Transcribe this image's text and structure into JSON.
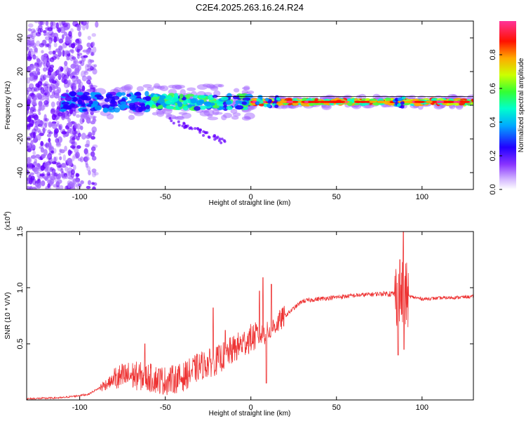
{
  "title": "C2E4.2025.263.16.24.R24",
  "colors": {
    "snr_line": "#ee3333",
    "colormap": [
      "#ffffff",
      "#b388ff",
      "#6600ff",
      "#0000ff",
      "#00ccff",
      "#00ff66",
      "#ccff00",
      "#ff9900",
      "#ff0000",
      "#ff3388"
    ]
  },
  "chart_data": [
    {
      "type": "heatmap",
      "title": "",
      "xlabel": "Height of straight line (km)",
      "ylabel": "Frequency (Hz)",
      "xlim": [
        -131,
        130
      ],
      "ylim": [
        -50,
        50
      ],
      "xticks": [
        -100,
        -50,
        0,
        50,
        100
      ],
      "yticks": [
        -40,
        -20,
        0,
        20,
        40
      ],
      "colorbar": {
        "label": "Normalized spectral amplitude",
        "range": [
          0.0,
          1.0
        ],
        "ticks": [
          0.0,
          0.2,
          0.4,
          0.6,
          0.8
        ],
        "tick_labels": [
          "0.0",
          "0.2",
          "0.4",
          "0.6",
          "0.8"
        ]
      },
      "features": {
        "noise_region_x": [
          -131,
          -90
        ],
        "main_band_freq_hz": 2,
        "reflection_events_km": [
          5,
          10,
          15,
          85,
          88
        ],
        "side_band": {
          "x": [
            -48,
            -15
          ],
          "freq_hz": [
            -8,
            -22
          ]
        }
      }
    },
    {
      "type": "line",
      "title": "",
      "xlabel": "Height of straight line (km)",
      "ylabel": "SNR (10 * V/V)",
      "y_multiplier": "(x10",
      "y_multiplier_exp": "4",
      "y_multiplier_close": ")",
      "xlim": [
        -131,
        130
      ],
      "ylim": [
        0,
        1.5
      ],
      "xticks": [
        -100,
        -50,
        0,
        50,
        100
      ],
      "yticks": [
        0.5,
        1.0,
        1.5
      ],
      "ytick_labels": [
        "0.5",
        "1.0",
        "1.5"
      ],
      "series": [
        {
          "name": "SNR",
          "x": [
            -131,
            -110,
            -95,
            -87,
            -80,
            -70,
            -60,
            -50,
            -40,
            -30,
            -20,
            -10,
            0,
            10,
            20,
            30,
            40,
            60,
            80,
            90,
            100,
            115,
            130
          ],
          "y": [
            0.01,
            0.02,
            0.05,
            0.12,
            0.18,
            0.22,
            0.2,
            0.17,
            0.2,
            0.3,
            0.35,
            0.45,
            0.55,
            0.6,
            0.75,
            0.88,
            0.9,
            0.93,
            0.95,
            0.93,
            0.9,
            0.91,
            0.92
          ]
        }
      ],
      "spikes": [
        {
          "x": -62,
          "y": 0.5
        },
        {
          "x": -22,
          "y": 0.82
        },
        {
          "x": -15,
          "y": 0.62
        },
        {
          "x": 5,
          "y": 0.97
        },
        {
          "x": 7,
          "y": 1.09
        },
        {
          "x": 9,
          "y": 0.15
        },
        {
          "x": 12,
          "y": 1.03
        },
        {
          "x": 87,
          "y": 1.25
        },
        {
          "x": 86,
          "y": 0.4
        },
        {
          "x": 89,
          "y": 1.5
        },
        {
          "x": 89.5,
          "y": 0.45
        }
      ]
    }
  ]
}
